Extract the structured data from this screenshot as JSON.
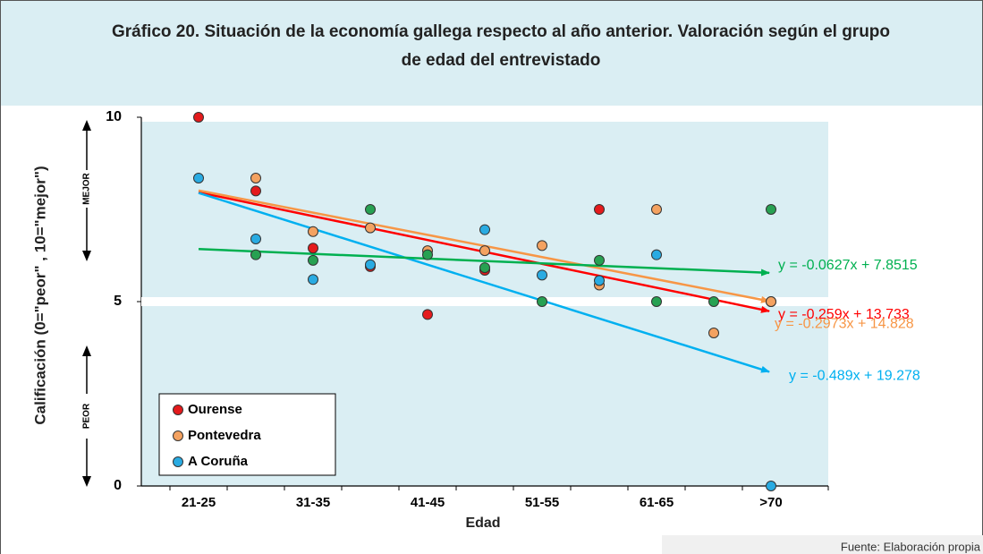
{
  "chart_data": {
    "type": "scatter",
    "title": "Gráfico 20. Situación de la economía gallega respecto al año anterior. Valoración según el grupo",
    "title_line2": "de edad del entrevistado",
    "x_label": "Edad",
    "y_label": "Calificación (0=\"peor\" , 10=\"mejor\")",
    "upper_label": "MEJOR",
    "lower_label": "PEOR",
    "source": "Fuente: Elaboración propia",
    "categories": [
      "21-25",
      null,
      "31-35",
      null,
      "41-45",
      null,
      "51-55",
      null,
      "61-65",
      null,
      ">70"
    ],
    "ylim": [
      0,
      10
    ],
    "yticks": [
      0,
      5,
      10
    ],
    "series": [
      {
        "name": "Ourense",
        "color": "#e41a1c",
        "trend_color": "#ff0000",
        "trendline_label": "y = -0.259x + 13.733",
        "values": [
          10,
          8.0,
          6.45,
          5.95,
          4.65,
          5.85,
          null,
          7.5,
          null,
          null,
          5.0
        ]
      },
      {
        "name": "Pontevedra",
        "color": "#f4a261",
        "trend_color": "#f79646",
        "trendline_label": "y = -0.2973x + 14.828",
        "values": [
          null,
          8.35,
          6.9,
          7.0,
          6.38,
          6.38,
          6.52,
          5.45,
          7.5,
          4.15,
          5.0
        ]
      },
      {
        "name": "A Coruña",
        "color": "#29abe2",
        "trend_color": "#00b0f0",
        "trendline_label": "y = -0.489x + 19.278",
        "values": [
          8.35,
          6.7,
          5.6,
          6.0,
          null,
          6.95,
          5.72,
          5.57,
          6.27,
          null,
          0
        ]
      },
      {
        "color": "#27a152",
        "trend_color": "#00b050",
        "trendline_label": "y = -0.0627x + 7.8515",
        "values": [
          null,
          6.27,
          6.12,
          7.5,
          6.27,
          5.92,
          5.0,
          6.12,
          5.0,
          5.0,
          7.5
        ]
      }
    ]
  }
}
